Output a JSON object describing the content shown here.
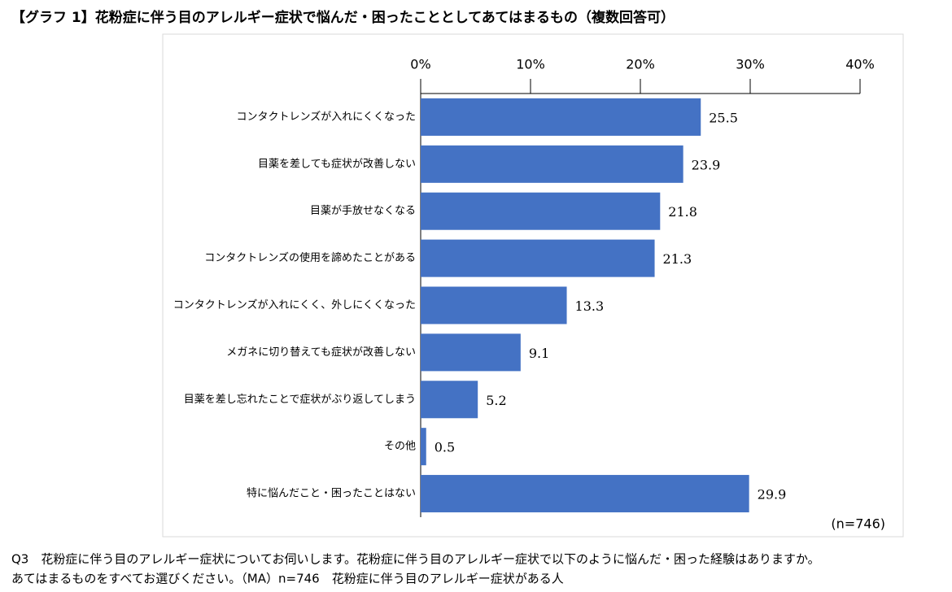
{
  "chart_data": {
    "type": "bar",
    "orientation": "horizontal",
    "title": "【グラフ 1】花粉症に伴う目のアレルギー症状で悩んだ・困ったこととしてあてはまるもの（複数回答可）",
    "categories": [
      "コンタクトレンズが入れにくくなった",
      "目薬を差しても症状が改善しない",
      "目薬が手放せなくなる",
      "コンタクトレンズの使用を諦めたことがある",
      "コンタクトレンズが入れにくく、外しにくくなった",
      "メガネに切り替えても症状が改善しない",
      "目薬を差し忘れたことで症状がぶり返してしまう",
      "その他",
      "特に悩んだこと・困ったことはない"
    ],
    "values": [
      25.5,
      23.9,
      21.8,
      21.3,
      13.3,
      9.1,
      5.2,
      0.5,
      29.9
    ],
    "color": "#4472c4",
    "xlim": [
      0,
      40
    ],
    "xticks": [
      {
        "value": 0,
        "label": "0%"
      },
      {
        "value": 10,
        "label": "10%"
      },
      {
        "value": 20,
        "label": "20%"
      },
      {
        "value": 30,
        "label": "30%"
      },
      {
        "value": 40,
        "label": "40%"
      }
    ],
    "annotation": "(n=746)",
    "notes": [
      "Q3　花粉症に伴う目のアレルギー症状についてお伺いします。花粉症に伴う目のアレルギー症状で以下のように悩んだ・困った経験はありますか。",
      "あてはまるものをすべてお選びください。（MA）n=746　花粉症に伴う目のアレルギー症状がある人"
    ]
  }
}
